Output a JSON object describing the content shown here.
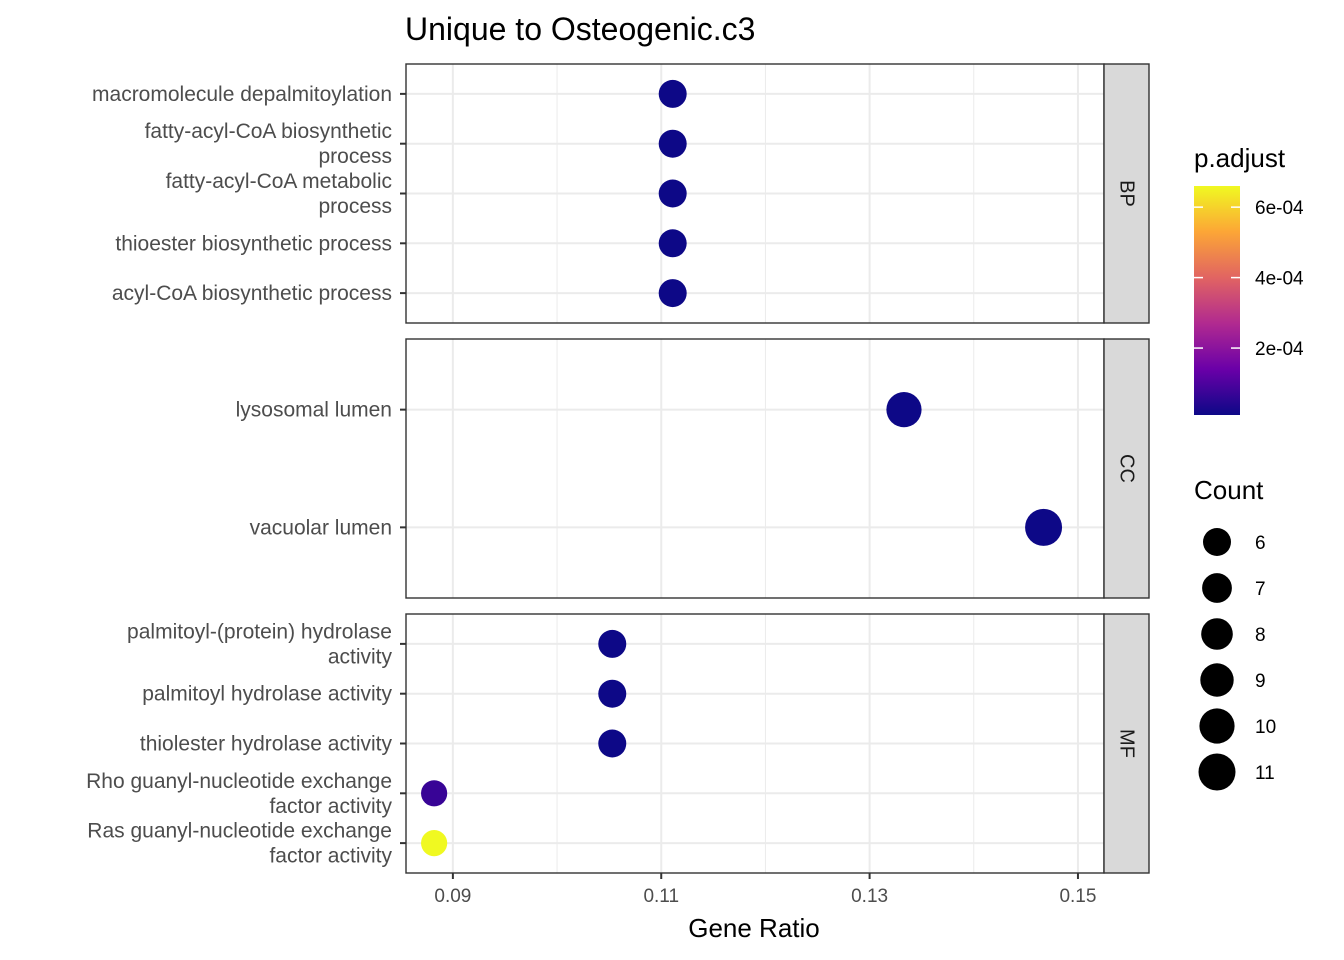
{
  "chart_data": {
    "type": "scatter",
    "title": "Unique to Osteogenic.c3",
    "xlabel": "Gene Ratio",
    "ylabel": "",
    "xlim": [
      0.0855,
      0.1525
    ],
    "xticks": [
      0.09,
      0.11,
      0.13,
      0.15
    ],
    "xtick_labels": [
      "0.09",
      "0.11",
      "0.13",
      "0.15"
    ],
    "grid": true,
    "facets": [
      {
        "name": "BP",
        "points": [
          {
            "term": [
              "macromolecule depalmitoylation"
            ],
            "x": 0.1111,
            "count": 6,
            "p_adjust": 1e-05
          },
          {
            "term": [
              "fatty-acyl-CoA biosynthetic",
              "process"
            ],
            "x": 0.1111,
            "count": 6,
            "p_adjust": 1e-05
          },
          {
            "term": [
              "fatty-acyl-CoA metabolic",
              "process"
            ],
            "x": 0.1111,
            "count": 6,
            "p_adjust": 1e-05
          },
          {
            "term": [
              "thioester biosynthetic process"
            ],
            "x": 0.1111,
            "count": 6,
            "p_adjust": 1e-05
          },
          {
            "term": [
              "acyl-CoA biosynthetic process"
            ],
            "x": 0.1111,
            "count": 6,
            "p_adjust": 1e-05
          }
        ]
      },
      {
        "name": "CC",
        "points": [
          {
            "term": [
              "lysosomal lumen"
            ],
            "x": 0.1333,
            "count": 10,
            "p_adjust": 1e-05
          },
          {
            "term": [
              "vacuolar lumen"
            ],
            "x": 0.1467,
            "count": 11,
            "p_adjust": 1e-05
          }
        ]
      },
      {
        "name": "MF",
        "points": [
          {
            "term": [
              "palmitoyl-(protein) hydrolase",
              "activity"
            ],
            "x": 0.1053,
            "count": 6,
            "p_adjust": 1e-05
          },
          {
            "term": [
              "palmitoyl hydrolase activity"
            ],
            "x": 0.1053,
            "count": 6,
            "p_adjust": 1e-05
          },
          {
            "term": [
              "thiolester hydrolase activity"
            ],
            "x": 0.1053,
            "count": 6,
            "p_adjust": 1e-05
          },
          {
            "term": [
              "Rho guanyl-nucleotide exchange",
              "factor activity"
            ],
            "x": 0.0882,
            "count": 5,
            "p_adjust": 7e-05
          },
          {
            "term": [
              "Ras guanyl-nucleotide exchange",
              "factor activity"
            ],
            "x": 0.0882,
            "count": 5,
            "p_adjust": 0.00066
          }
        ]
      }
    ],
    "legend_color": {
      "title": "p.adjust",
      "range": [
        1e-05,
        0.00066
      ],
      "ticks": [
        0.0002,
        0.0004,
        0.0006
      ],
      "tick_labels": [
        "2e-04",
        "4e-04",
        "6e-04"
      ],
      "palette": [
        "#0d0887",
        "#6a00a8",
        "#b12a90",
        "#e16462",
        "#fca636",
        "#f0f921"
      ]
    },
    "legend_size": {
      "title": "Count",
      "values": [
        6,
        7,
        8,
        9,
        10,
        11
      ],
      "labels": [
        "6",
        "7",
        "8",
        "9",
        "10",
        "11"
      ]
    },
    "legend_placement": "right"
  }
}
